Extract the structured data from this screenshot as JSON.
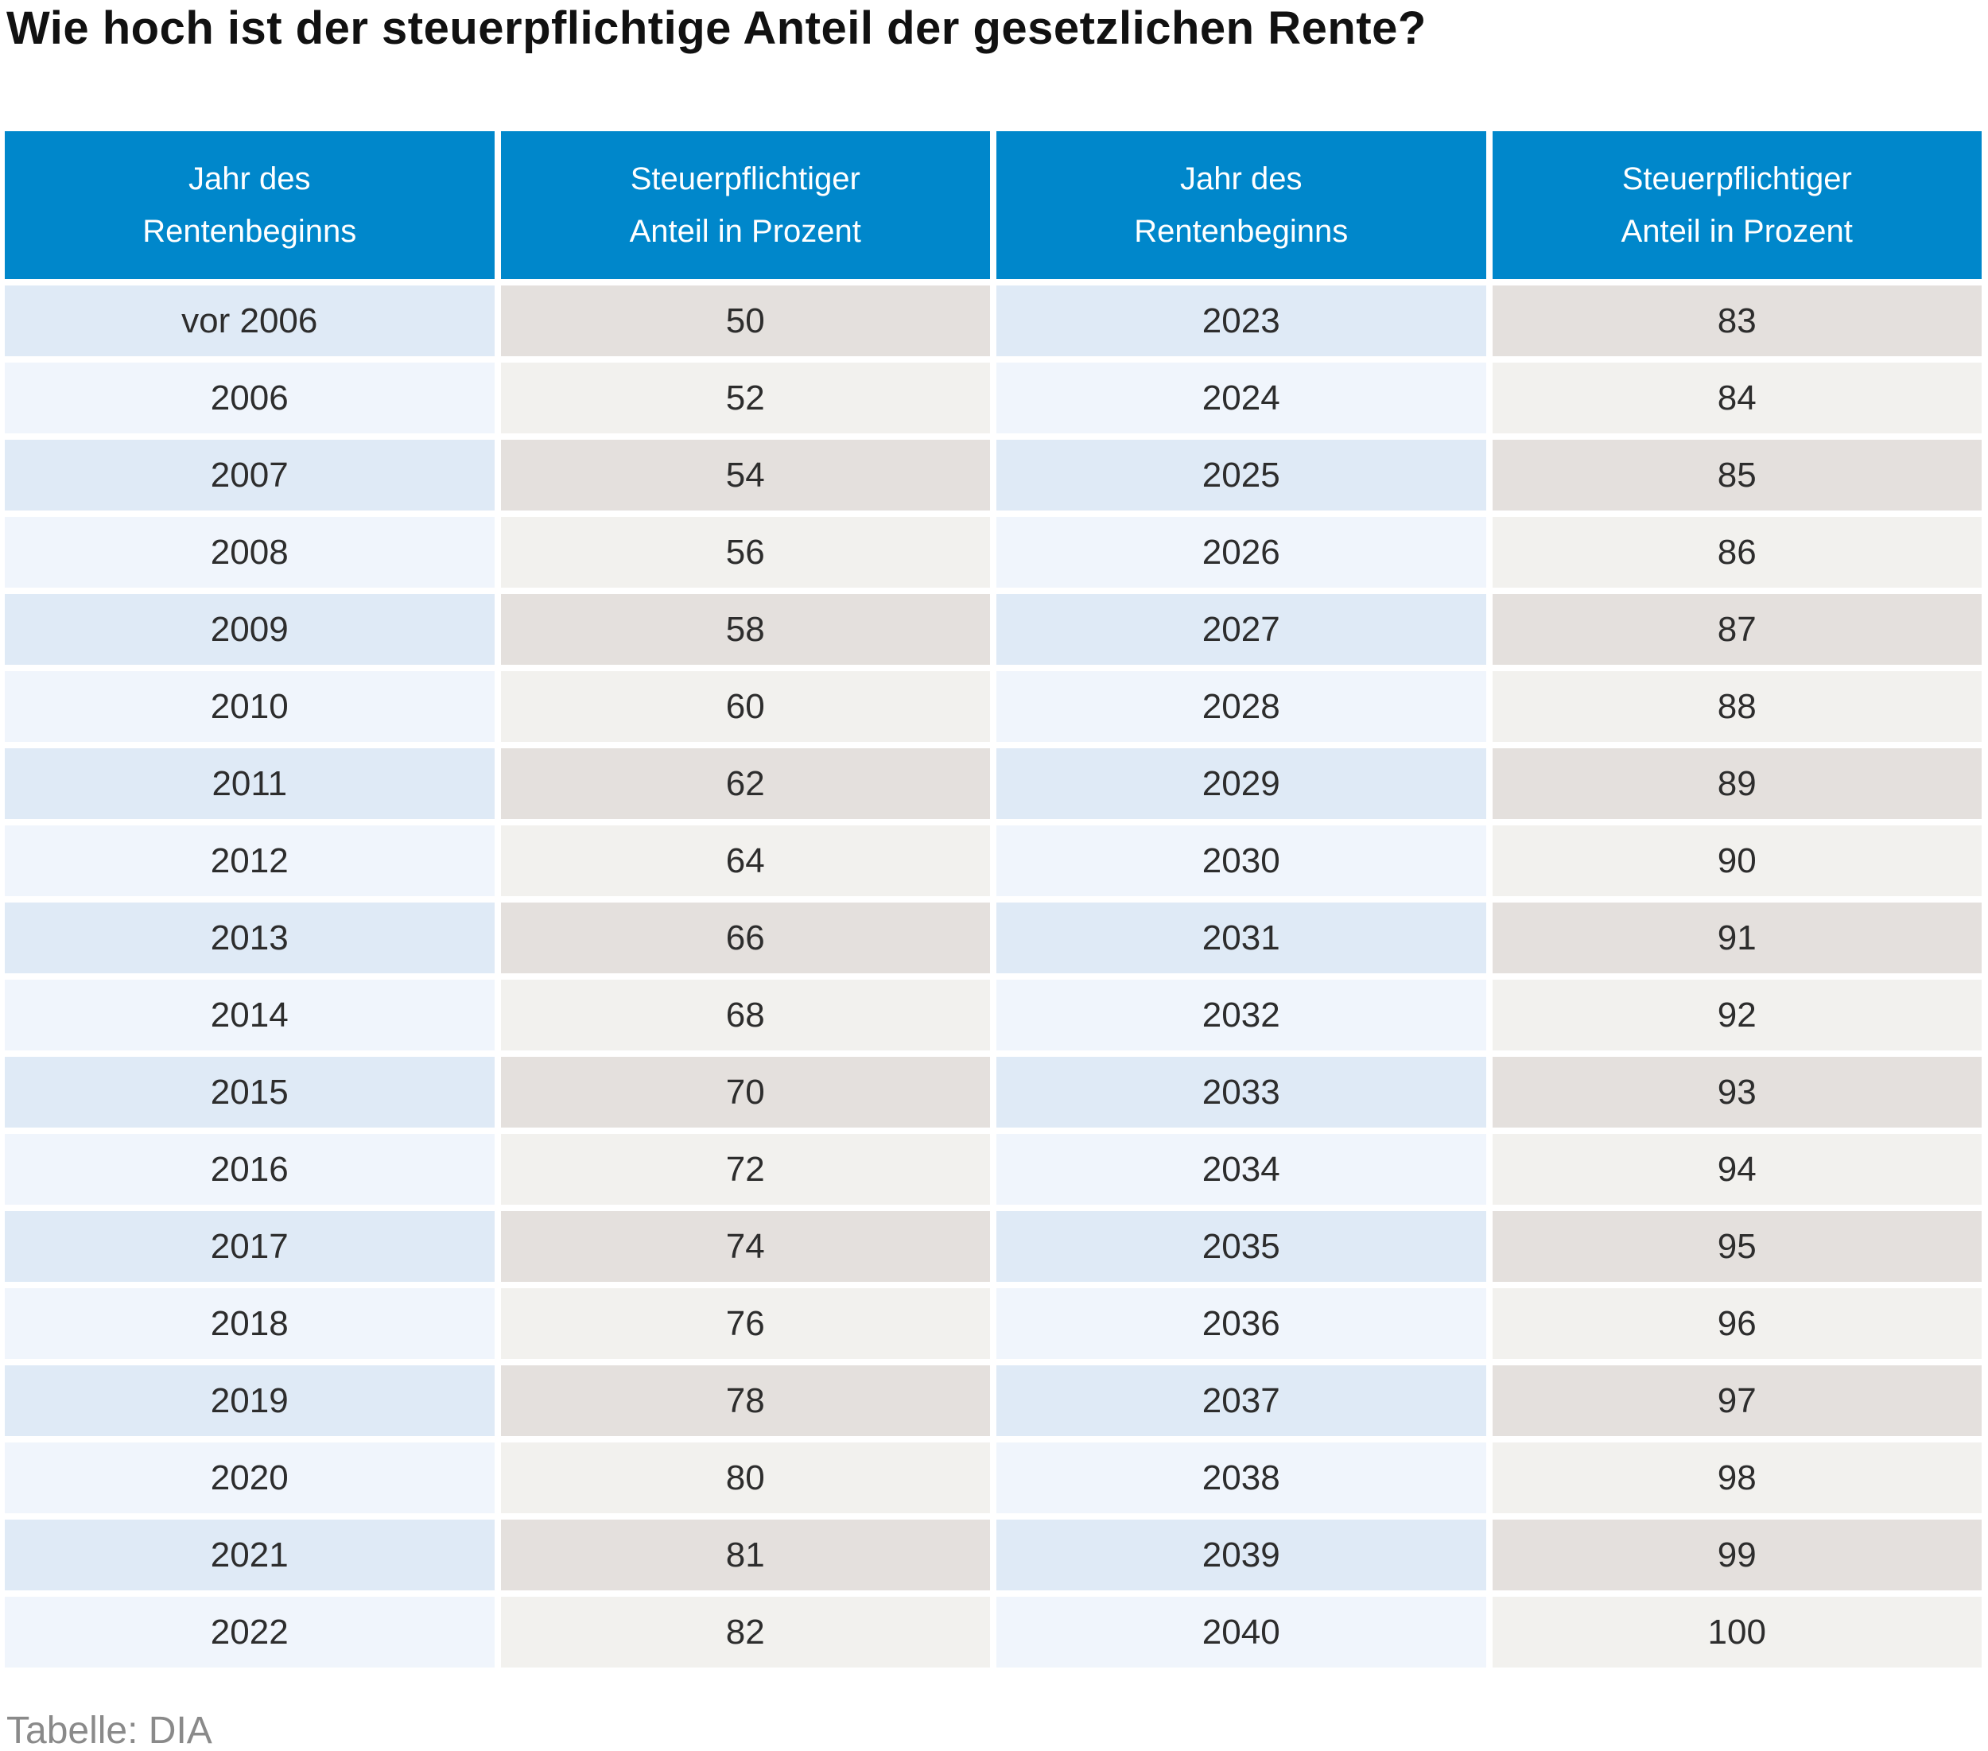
{
  "title": "Wie hoch ist der steuerpflichtige Anteil der gesetzlichen Rente?",
  "source": "Tabelle: DIA",
  "colors": {
    "header_bg": "#0087cb",
    "header_text": "#ffffff",
    "year_cell_odd": "#dfeaf6",
    "year_cell_even": "#f0f5fc",
    "value_cell_odd": "#e4e0dd",
    "value_cell_even": "#f2f1ee",
    "cell_text": "#2d2d2d",
    "title_text": "#111111",
    "source_text": "#8a8a8a"
  },
  "chart_data": {
    "type": "table",
    "title": "Wie hoch ist der steuerpflichtige Anteil der gesetzlichen Rente?",
    "columns": [
      "Jahr des\nRentenbeginns",
      "Steuerpflichtiger\nAnteil in Prozent",
      "Jahr des\nRentenbeginns",
      "Steuerpflichtiger\nAnteil in Prozent"
    ],
    "rows": [
      [
        "vor 2006",
        "50",
        "2023",
        "83"
      ],
      [
        "2006",
        "52",
        "2024",
        "84"
      ],
      [
        "2007",
        "54",
        "2025",
        "85"
      ],
      [
        "2008",
        "56",
        "2026",
        "86"
      ],
      [
        "2009",
        "58",
        "2027",
        "87"
      ],
      [
        "2010",
        "60",
        "2028",
        "88"
      ],
      [
        "2011",
        "62",
        "2029",
        "89"
      ],
      [
        "2012",
        "64",
        "2030",
        "90"
      ],
      [
        "2013",
        "66",
        "2031",
        "91"
      ],
      [
        "2014",
        "68",
        "2032",
        "92"
      ],
      [
        "2015",
        "70",
        "2033",
        "93"
      ],
      [
        "2016",
        "72",
        "2034",
        "94"
      ],
      [
        "2017",
        "74",
        "2035",
        "95"
      ],
      [
        "2018",
        "76",
        "2036",
        "96"
      ],
      [
        "2019",
        "78",
        "2037",
        "97"
      ],
      [
        "2020",
        "80",
        "2038",
        "98"
      ],
      [
        "2021",
        "81",
        "2039",
        "99"
      ],
      [
        "2022",
        "82",
        "2040",
        "100"
      ]
    ],
    "source": "Tabelle: DIA"
  }
}
